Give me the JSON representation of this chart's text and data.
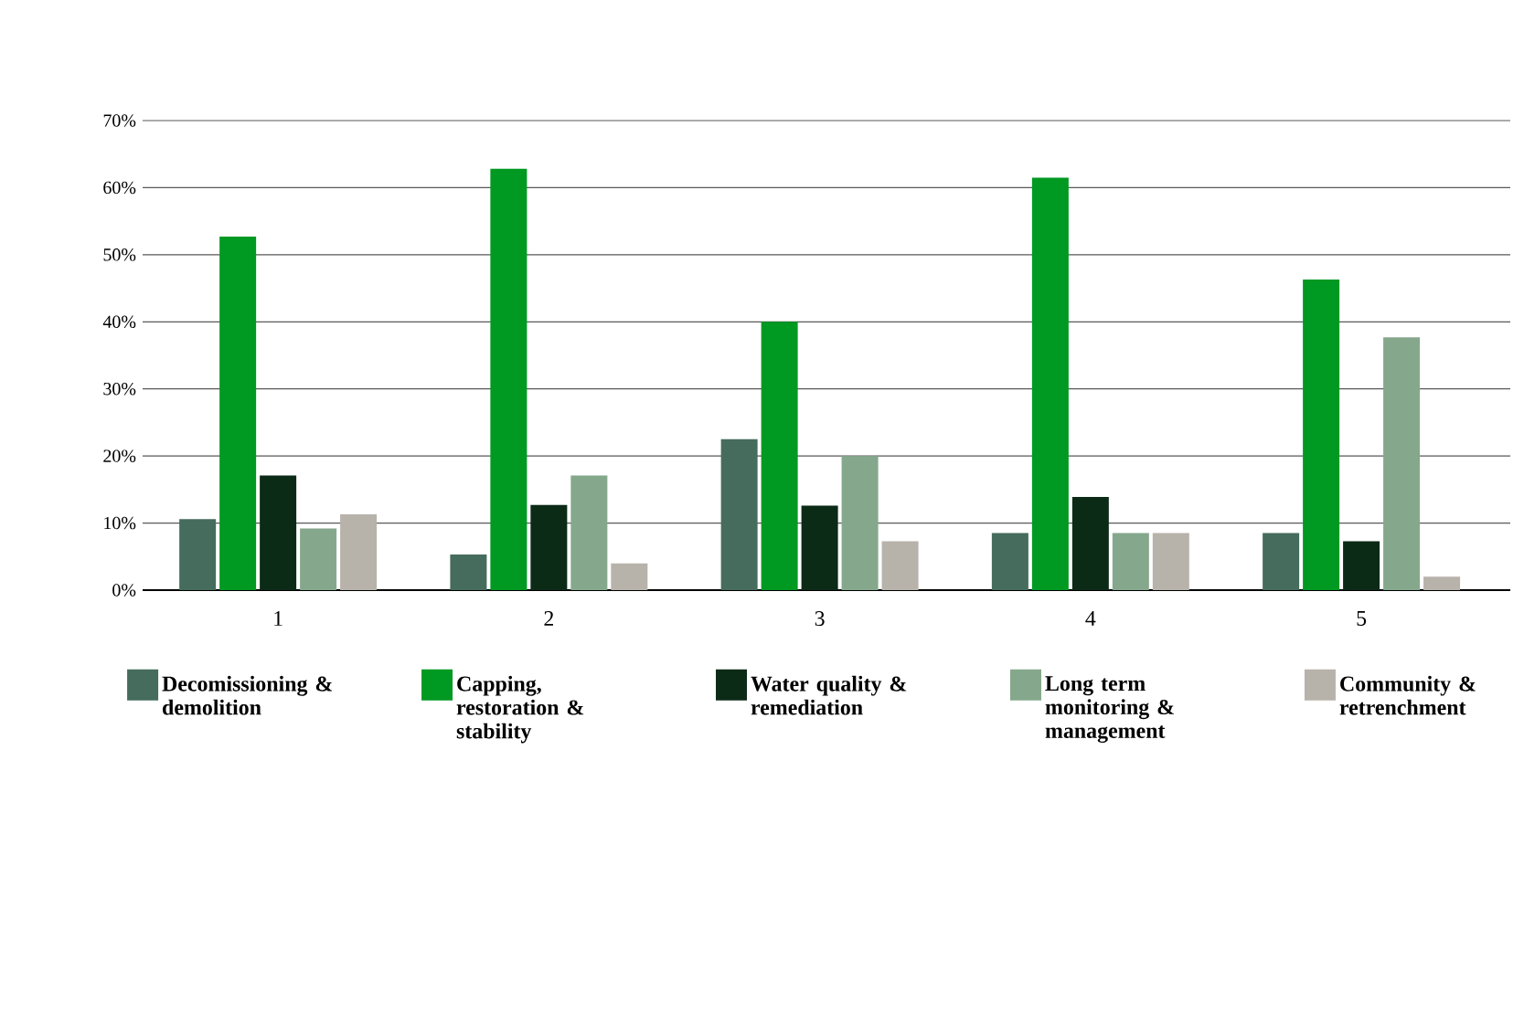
{
  "chart_data": {
    "type": "bar",
    "categories": [
      "1",
      "2",
      "3",
      "4",
      "5"
    ],
    "series": [
      {
        "name": "Decomissioning & demolition",
        "color": "#456c5c",
        "values": [
          10.6,
          5.3,
          22.5,
          8.5,
          8.5
        ]
      },
      {
        "name": "Capping, restoration & stability",
        "color": "#009922",
        "values": [
          52.7,
          62.8,
          40,
          61.5,
          46.3
        ]
      },
      {
        "name": "Water quality & remediation",
        "color": "#0c2b17",
        "values": [
          17.1,
          12.7,
          12.6,
          13.9,
          7.3
        ]
      },
      {
        "name": "Long term monitoring & management",
        "color": "#85a88c",
        "values": [
          9.2,
          17.1,
          20,
          8.5,
          37.7
        ]
      },
      {
        "name": "Community & retrenchment",
        "color": "#b7b2aa",
        "values": [
          11.3,
          4.0,
          7.3,
          8.5,
          2.0
        ]
      }
    ],
    "ylim": [
      0,
      70
    ],
    "yticks": [
      {
        "value": 0,
        "label": "0%"
      },
      {
        "value": 10,
        "label": "10%"
      },
      {
        "value": 20,
        "label": "20%"
      },
      {
        "value": 30,
        "label": "30%"
      },
      {
        "value": 40,
        "label": "40%"
      },
      {
        "value": 50,
        "label": "50%"
      },
      {
        "value": 60,
        "label": "60%"
      },
      {
        "value": 70,
        "label": "70%"
      }
    ],
    "grid": "y",
    "legend": "bottom"
  }
}
